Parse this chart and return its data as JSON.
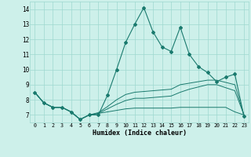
{
  "xlabel": "Humidex (Indice chaleur)",
  "x_values": [
    0,
    1,
    2,
    3,
    4,
    5,
    6,
    7,
    8,
    9,
    10,
    11,
    12,
    13,
    14,
    15,
    16,
    17,
    18,
    19,
    20,
    21,
    22,
    23
  ],
  "main_line": [
    8.5,
    7.8,
    7.5,
    7.5,
    7.2,
    6.7,
    7.0,
    7.0,
    8.3,
    10.0,
    11.8,
    13.0,
    14.1,
    12.5,
    11.5,
    11.2,
    12.8,
    11.0,
    10.2,
    9.8,
    9.2,
    9.5,
    9.7,
    6.9
  ],
  "line2": [
    8.5,
    7.8,
    7.5,
    7.5,
    7.2,
    6.7,
    7.0,
    7.1,
    7.2,
    7.3,
    7.4,
    7.45,
    7.45,
    7.45,
    7.45,
    7.45,
    7.5,
    7.5,
    7.5,
    7.5,
    7.5,
    7.5,
    7.2,
    7.0
  ],
  "line3": [
    8.5,
    7.8,
    7.5,
    7.5,
    7.2,
    6.7,
    7.0,
    7.1,
    7.4,
    7.7,
    7.95,
    8.1,
    8.1,
    8.15,
    8.2,
    8.25,
    8.5,
    8.7,
    8.85,
    9.0,
    9.0,
    8.8,
    8.6,
    7.0
  ],
  "line4": [
    8.5,
    7.8,
    7.5,
    7.5,
    7.2,
    6.7,
    7.0,
    7.15,
    7.55,
    8.0,
    8.35,
    8.5,
    8.55,
    8.6,
    8.65,
    8.7,
    9.0,
    9.1,
    9.2,
    9.3,
    9.3,
    9.15,
    9.0,
    7.0
  ],
  "line_color": "#1a7a6e",
  "bg_color": "#cdf0ea",
  "grid_color": "#9fd8d0",
  "ylim": [
    6.5,
    14.5
  ],
  "yticks": [
    7,
    8,
    9,
    10,
    11,
    12,
    13,
    14
  ],
  "xlim": [
    -0.5,
    23.5
  ]
}
